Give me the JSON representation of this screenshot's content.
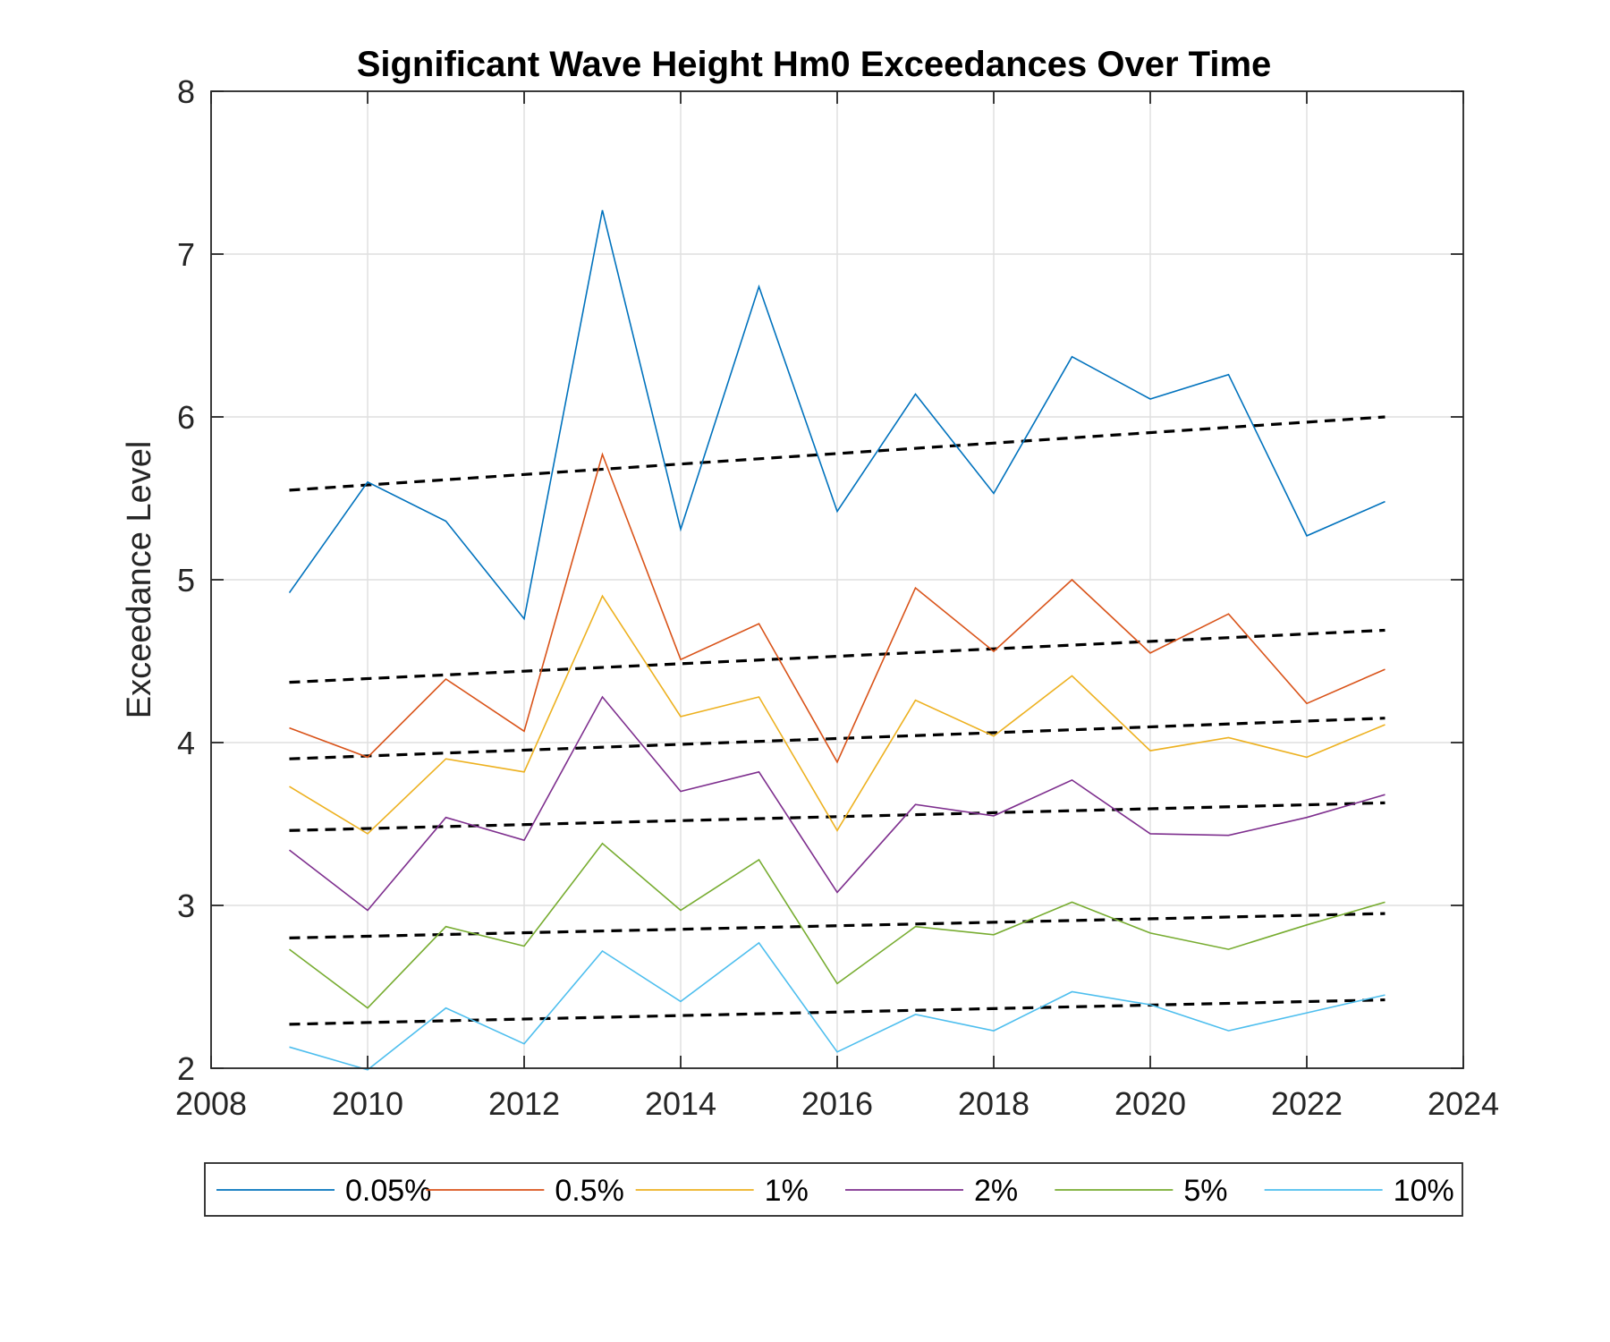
{
  "chart_data": {
    "type": "line",
    "title": "Significant Wave Height Hm0 Exceedances Over Time",
    "xlabel": "",
    "ylabel": "Exceedance Level",
    "xlim": [
      2008,
      2024
    ],
    "ylim": [
      2,
      8
    ],
    "xticks": [
      2008,
      2010,
      2012,
      2014,
      2016,
      2018,
      2020,
      2022,
      2024
    ],
    "yticks": [
      2,
      3,
      4,
      5,
      6,
      7,
      8
    ],
    "grid": true,
    "legend_position": "bottom-outside",
    "x": [
      2009,
      2010,
      2011,
      2012,
      2013,
      2014,
      2015,
      2016,
      2017,
      2018,
      2019,
      2020,
      2021,
      2022,
      2023
    ],
    "series": [
      {
        "name": "0.05%",
        "color": "#0072BD",
        "values": [
          4.92,
          5.6,
          5.36,
          4.76,
          7.27,
          5.31,
          6.8,
          5.42,
          6.14,
          5.53,
          6.37,
          6.11,
          6.26,
          5.27,
          5.48
        ],
        "trend": [
          5.55,
          6.0
        ]
      },
      {
        "name": "0.5%",
        "color": "#D95319",
        "values": [
          4.09,
          3.91,
          4.39,
          4.07,
          5.77,
          4.51,
          4.73,
          3.88,
          4.95,
          4.56,
          5.0,
          4.55,
          4.79,
          4.24,
          4.45
        ],
        "trend": [
          4.37,
          4.69
        ]
      },
      {
        "name": "1%",
        "color": "#EDB120",
        "values": [
          3.73,
          3.44,
          3.9,
          3.82,
          4.9,
          4.16,
          4.28,
          3.46,
          4.26,
          4.04,
          4.41,
          3.95,
          4.03,
          3.91,
          4.11
        ],
        "trend": [
          3.9,
          4.15
        ]
      },
      {
        "name": "2%",
        "color": "#7E2F8E",
        "values": [
          3.34,
          2.97,
          3.54,
          3.4,
          4.28,
          3.7,
          3.82,
          3.08,
          3.62,
          3.55,
          3.77,
          3.44,
          3.43,
          3.54,
          3.68
        ],
        "trend": [
          3.46,
          3.63
        ]
      },
      {
        "name": "5%",
        "color": "#77AC30",
        "values": [
          2.73,
          2.37,
          2.87,
          2.75,
          3.38,
          2.97,
          3.28,
          2.52,
          2.87,
          2.82,
          3.02,
          2.83,
          2.73,
          2.88,
          3.02
        ],
        "trend": [
          2.8,
          2.95
        ]
      },
      {
        "name": "10%",
        "color": "#4DBEEE",
        "values": [
          2.13,
          1.99,
          2.37,
          2.15,
          2.72,
          2.41,
          2.77,
          2.1,
          2.33,
          2.23,
          2.47,
          2.39,
          2.23,
          2.34,
          2.45
        ],
        "trend": [
          2.27,
          2.42
        ]
      }
    ]
  }
}
